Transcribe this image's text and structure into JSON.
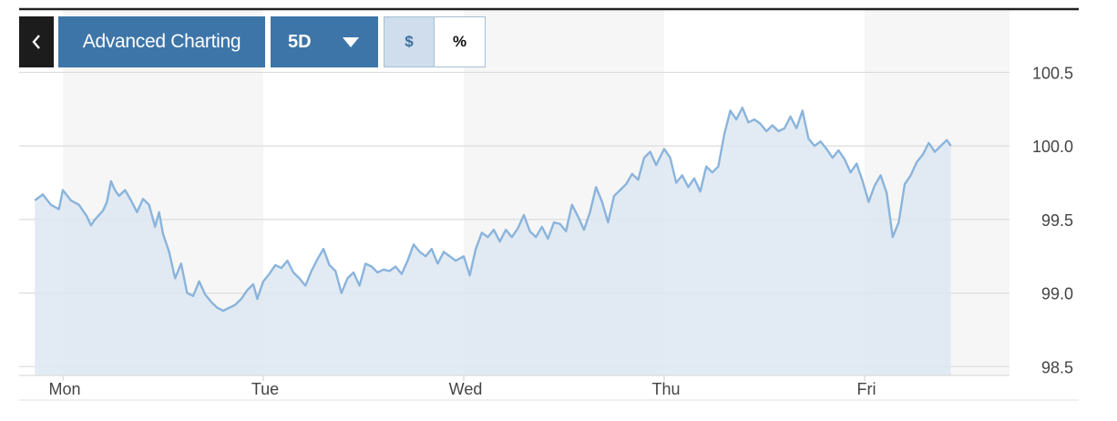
{
  "toolbar": {
    "back_icon": "chevron-left-icon",
    "advanced_label": "Advanced Charting",
    "range_selected": "5D",
    "range_icon": "caret-down-icon",
    "mode_dollar": "$",
    "mode_percent": "%",
    "mode_active": "$"
  },
  "colors": {
    "button": "#3d75a8",
    "back_button": "#1c1c1c",
    "line": "#8ab4dc",
    "area": "#dde8f1",
    "shade": "#f6f6f6",
    "grid": "#dcdcdc",
    "top_rule": "#222222"
  },
  "chart_data": {
    "type": "area",
    "title": "",
    "xlabel": "",
    "ylabel": "",
    "ylim": [
      98.44,
      100.93
    ],
    "yticks": [
      "98.5",
      "99.0",
      "99.5",
      "100.0",
      "100.5"
    ],
    "x_tick_labels": [
      "Mon",
      "Tue",
      "Wed",
      "Thu",
      "Fri"
    ],
    "grid": "horizontal",
    "shaded_sessions": true,
    "series": [
      {
        "values": [
          [
            -0.14,
            99.63
          ],
          [
            -0.1,
            99.67
          ],
          [
            -0.06,
            99.6
          ],
          [
            -0.02,
            99.57
          ],
          [
            0.0,
            99.7
          ],
          [
            0.04,
            99.63
          ],
          [
            0.08,
            99.6
          ],
          [
            0.12,
            99.52
          ],
          [
            0.14,
            99.46
          ],
          [
            0.16,
            99.5
          ],
          [
            0.2,
            99.56
          ],
          [
            0.22,
            99.62
          ],
          [
            0.24,
            99.76
          ],
          [
            0.26,
            99.7
          ],
          [
            0.28,
            99.66
          ],
          [
            0.31,
            99.7
          ],
          [
            0.34,
            99.63
          ],
          [
            0.37,
            99.55
          ],
          [
            0.4,
            99.64
          ],
          [
            0.43,
            99.6
          ],
          [
            0.46,
            99.45
          ],
          [
            0.48,
            99.55
          ],
          [
            0.5,
            99.4
          ],
          [
            0.53,
            99.28
          ],
          [
            0.56,
            99.1
          ],
          [
            0.59,
            99.2
          ],
          [
            0.62,
            99.0
          ],
          [
            0.65,
            98.98
          ],
          [
            0.68,
            99.08
          ],
          [
            0.71,
            98.99
          ],
          [
            0.74,
            98.94
          ],
          [
            0.77,
            98.9
          ],
          [
            0.8,
            98.88
          ],
          [
            0.83,
            98.9
          ],
          [
            0.86,
            98.92
          ],
          [
            0.89,
            98.96
          ],
          [
            0.92,
            99.02
          ],
          [
            0.95,
            99.06
          ],
          [
            0.97,
            98.96
          ],
          [
            1.0,
            99.08
          ],
          [
            1.03,
            99.13
          ],
          [
            1.06,
            99.19
          ],
          [
            1.09,
            99.17
          ],
          [
            1.12,
            99.22
          ],
          [
            1.15,
            99.14
          ],
          [
            1.18,
            99.1
          ],
          [
            1.21,
            99.05
          ],
          [
            1.24,
            99.15
          ],
          [
            1.27,
            99.23
          ],
          [
            1.3,
            99.3
          ],
          [
            1.33,
            99.19
          ],
          [
            1.36,
            99.15
          ],
          [
            1.39,
            99.0
          ],
          [
            1.42,
            99.1
          ],
          [
            1.45,
            99.14
          ],
          [
            1.48,
            99.05
          ],
          [
            1.51,
            99.2
          ],
          [
            1.54,
            99.18
          ],
          [
            1.57,
            99.14
          ],
          [
            1.6,
            99.16
          ],
          [
            1.63,
            99.15
          ],
          [
            1.66,
            99.18
          ],
          [
            1.69,
            99.13
          ],
          [
            1.72,
            99.22
          ],
          [
            1.75,
            99.33
          ],
          [
            1.78,
            99.28
          ],
          [
            1.81,
            99.25
          ],
          [
            1.84,
            99.3
          ],
          [
            1.87,
            99.2
          ],
          [
            1.9,
            99.28
          ],
          [
            1.93,
            99.25
          ],
          [
            1.96,
            99.22
          ],
          [
            2.0,
            99.25
          ],
          [
            2.03,
            99.12
          ],
          [
            2.06,
            99.3
          ],
          [
            2.09,
            99.41
          ],
          [
            2.12,
            99.38
          ],
          [
            2.15,
            99.43
          ],
          [
            2.18,
            99.35
          ],
          [
            2.21,
            99.43
          ],
          [
            2.24,
            99.38
          ],
          [
            2.27,
            99.44
          ],
          [
            2.3,
            99.53
          ],
          [
            2.33,
            99.42
          ],
          [
            2.36,
            99.38
          ],
          [
            2.39,
            99.45
          ],
          [
            2.42,
            99.37
          ],
          [
            2.45,
            99.48
          ],
          [
            2.48,
            99.47
          ],
          [
            2.51,
            99.42
          ],
          [
            2.54,
            99.6
          ],
          [
            2.57,
            99.52
          ],
          [
            2.6,
            99.43
          ],
          [
            2.63,
            99.55
          ],
          [
            2.66,
            99.72
          ],
          [
            2.69,
            99.62
          ],
          [
            2.72,
            99.48
          ],
          [
            2.75,
            99.66
          ],
          [
            2.78,
            99.7
          ],
          [
            2.81,
            99.74
          ],
          [
            2.84,
            99.81
          ],
          [
            2.87,
            99.77
          ],
          [
            2.9,
            99.92
          ],
          [
            2.93,
            99.96
          ],
          [
            2.96,
            99.87
          ],
          [
            3.0,
            99.98
          ],
          [
            3.03,
            99.92
          ],
          [
            3.06,
            99.75
          ],
          [
            3.09,
            99.8
          ],
          [
            3.12,
            99.72
          ],
          [
            3.15,
            99.78
          ],
          [
            3.18,
            99.69
          ],
          [
            3.21,
            99.86
          ],
          [
            3.24,
            99.82
          ],
          [
            3.27,
            99.86
          ],
          [
            3.3,
            100.08
          ],
          [
            3.33,
            100.24
          ],
          [
            3.36,
            100.18
          ],
          [
            3.39,
            100.26
          ],
          [
            3.42,
            100.16
          ],
          [
            3.45,
            100.18
          ],
          [
            3.48,
            100.15
          ],
          [
            3.51,
            100.1
          ],
          [
            3.54,
            100.14
          ],
          [
            3.57,
            100.1
          ],
          [
            3.6,
            100.12
          ],
          [
            3.63,
            100.2
          ],
          [
            3.66,
            100.12
          ],
          [
            3.69,
            100.24
          ],
          [
            3.72,
            100.05
          ],
          [
            3.75,
            100.0
          ],
          [
            3.78,
            100.03
          ],
          [
            3.81,
            99.98
          ],
          [
            3.84,
            99.92
          ],
          [
            3.87,
            99.97
          ],
          [
            3.9,
            99.91
          ],
          [
            3.93,
            99.82
          ],
          [
            3.96,
            99.88
          ],
          [
            3.99,
            99.76
          ],
          [
            4.02,
            99.62
          ],
          [
            4.05,
            99.73
          ],
          [
            4.08,
            99.8
          ],
          [
            4.11,
            99.68
          ],
          [
            4.14,
            99.38
          ],
          [
            4.17,
            99.48
          ],
          [
            4.2,
            99.74
          ],
          [
            4.23,
            99.8
          ],
          [
            4.26,
            99.89
          ],
          [
            4.29,
            99.94
          ],
          [
            4.32,
            100.02
          ],
          [
            4.35,
            99.96
          ],
          [
            4.38,
            100.0
          ],
          [
            4.41,
            100.04
          ],
          [
            4.43,
            100.0
          ]
        ]
      }
    ]
  }
}
